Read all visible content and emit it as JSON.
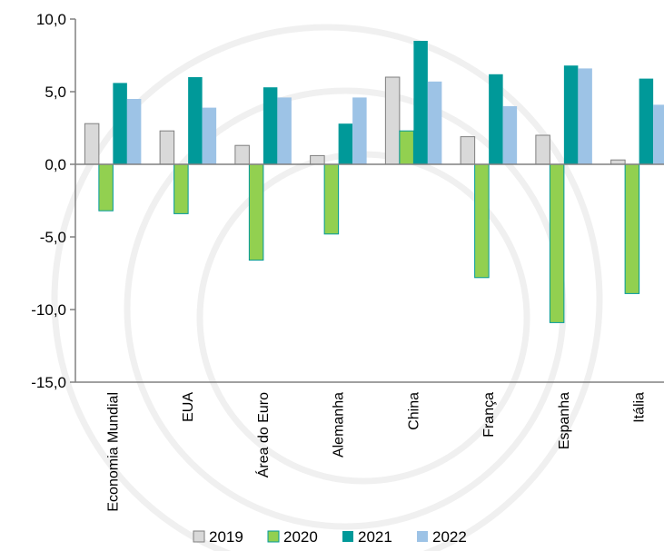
{
  "chart_data": {
    "type": "bar",
    "categories": [
      "Economia Mundial",
      "EUA",
      "Área do Euro",
      "Alemanha",
      "China",
      "França",
      "Espanha",
      "Itália"
    ],
    "series": [
      {
        "name": "2019",
        "values": [
          2.8,
          2.3,
          1.3,
          0.6,
          6.0,
          1.9,
          2.0,
          0.3
        ],
        "color": "#d9d9d9"
      },
      {
        "name": "2020",
        "values": [
          -3.2,
          -3.4,
          -6.6,
          -4.8,
          2.3,
          -7.8,
          -10.9,
          -8.9
        ],
        "color": "#92d050"
      },
      {
        "name": "2021",
        "values": [
          5.6,
          6.0,
          5.3,
          2.8,
          8.5,
          6.2,
          6.8,
          5.9
        ],
        "color": "#009999"
      },
      {
        "name": "2022",
        "values": [
          4.5,
          3.9,
          4.6,
          4.6,
          5.7,
          4.0,
          6.6,
          4.1
        ],
        "color": "#9dc3e6"
      }
    ],
    "yticks": [
      "10,0",
      "5,0",
      "0,0",
      "-5,0",
      "-10,0",
      "-15,0"
    ],
    "ylim": [
      -15,
      10
    ],
    "ystep": 5,
    "grid": false,
    "legend": "bottom",
    "title": "",
    "xlabel": "",
    "ylabel": ""
  }
}
